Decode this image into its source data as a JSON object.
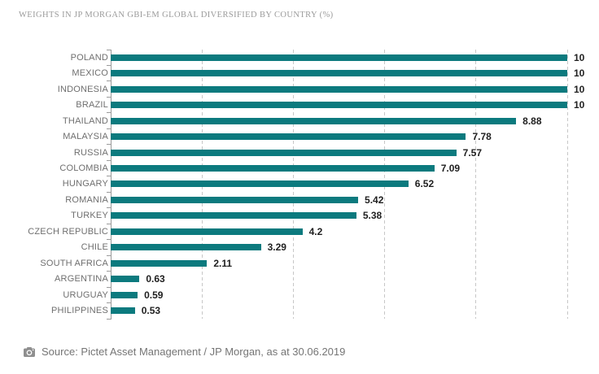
{
  "title": "WEIGHTS IN JP MORGAN GBI-EM GLOBAL DIVERSIFIED BY COUNTRY (%)",
  "source": {
    "icon": "camera-icon",
    "text": "Source: Pictet Asset Management / JP Morgan, as at 30.06.2019"
  },
  "colors": {
    "bar": "#0c7a7e",
    "axis": "#9a9a9a",
    "gridline": "#c7c7c7",
    "country_label": "#6f6f6f",
    "value_label": "#1f1f1f",
    "title": "#9b9b9b",
    "source_text": "#757575",
    "icon": "#8f8f8f"
  },
  "chart_data": {
    "type": "bar",
    "orientation": "horizontal",
    "title": "WEIGHTS IN JP MORGAN GBI-EM GLOBAL DIVERSIFIED BY COUNTRY (%)",
    "categories": [
      "POLAND",
      "MEXICO",
      "INDONESIA",
      "BRAZIL",
      "THAILAND",
      "MALAYSIA",
      "RUSSIA",
      "COLOMBIA",
      "HUNGARY",
      "ROMANIA",
      "TURKEY",
      "CZECH REPUBLIC",
      "CHILE",
      "SOUTH AFRICA",
      "ARGENTINA",
      "URUGUAY",
      "PHILIPPINES"
    ],
    "values": [
      10,
      10,
      10,
      10,
      8.88,
      7.78,
      7.57,
      7.09,
      6.52,
      5.42,
      5.38,
      4.2,
      3.29,
      2.11,
      0.63,
      0.59,
      0.53
    ],
    "value_labels": [
      "10",
      "10",
      "10",
      "10",
      "8.88",
      "7.78",
      "7.57",
      "7.09",
      "6.52",
      "5.42",
      "5.38",
      "4.2",
      "3.29",
      "2.11",
      "0.63",
      "0.59",
      "0.53"
    ],
    "xlabel": "",
    "ylabel": "",
    "xlim": [
      0,
      10
    ],
    "gridlines_x": [
      2,
      4,
      6,
      8,
      10
    ],
    "grid": "dashed-vertical",
    "legend": "none"
  }
}
